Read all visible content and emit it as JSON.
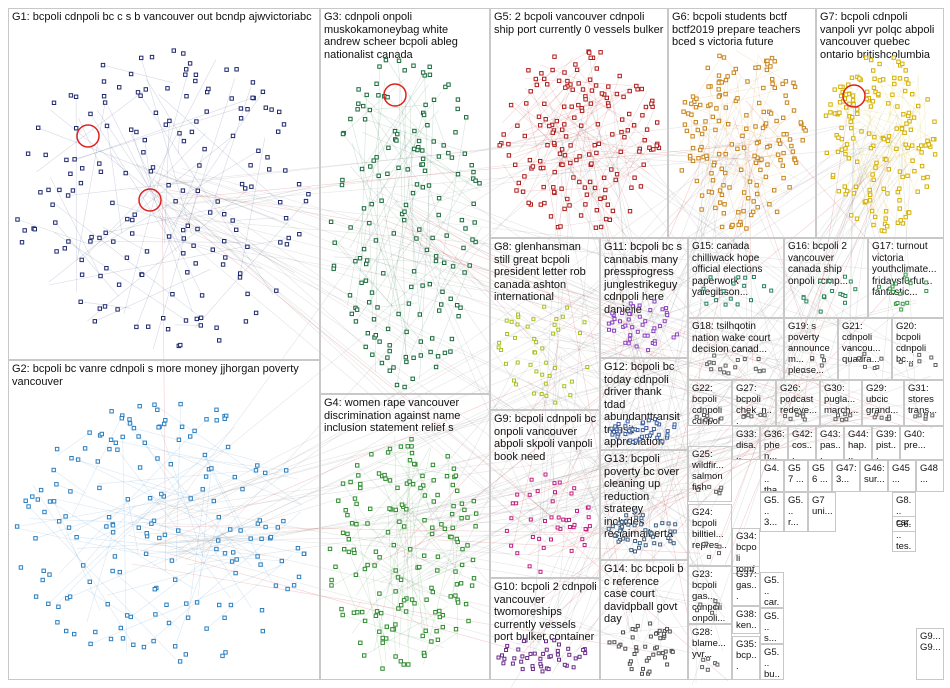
{
  "groups": [
    {
      "id": "G1",
      "label": "G1: bcpoli cdnpoli bc c s b vancouver out bcndp ajwvictoriabc",
      "color": "#1f2a6e"
    },
    {
      "id": "G2",
      "label": "G2: bcpoli bc vanre cdnpoli s more money jjhorgan poverty vancouver",
      "color": "#2a7fc0"
    },
    {
      "id": "G3",
      "label": "G3: cdnpoli onpoli muskokamoneybag white andrew scheer bcpoli ableg nationalist canada",
      "color": "#1a6b3c"
    },
    {
      "id": "G4",
      "label": "G4: women rape vancouver discrimination against name inclusion statement relief s",
      "color": "#2e8b2e"
    },
    {
      "id": "G5",
      "label": "G5: 2 bcpoli vancouver cdnpoli ship port currently 0 vessels bulker",
      "color": "#b01c1c"
    },
    {
      "id": "G6",
      "label": "G6: bcpoli students bctf bctf2019 prepare teachers bced s victoria future",
      "color": "#c8841a"
    },
    {
      "id": "G7",
      "label": "G7: bcpoli cdnpoli vanpoli yvr polqc abpoli vancouver quebec ontario britishcolumbia",
      "color": "#d4b000"
    },
    {
      "id": "G8",
      "label": "G8: glenhansman still great bcpoli president letter rob canada ashton international",
      "color": "#a8c020"
    },
    {
      "id": "G9",
      "label": "G9: bcpoli cdnpoli bc onpoli vancouver abpoli skpoli vanpoli book need",
      "color": "#c02080"
    },
    {
      "id": "G10",
      "label": "G10: bcpoli 2 cdnpoli vancouver twomoreships currently vessels port bulker container",
      "color": "#6a2a8a"
    },
    {
      "id": "G11",
      "label": "G11: bcpoli bc s cannabis many pressprogress junglestrikeguy cdnpoli here danielle",
      "color": "#8a40c0"
    },
    {
      "id": "G12",
      "label": "G12: bcpoli bc today cdnpoli driver thank tdad abundanttransit transit appreciation",
      "color": "#4060a0"
    },
    {
      "id": "G13",
      "label": "G13: bcpoli poverty bc over cleaning up reduction strategy includes reclaimalberta",
      "color": "#406080"
    },
    {
      "id": "G14",
      "label": "G14: bc bcpoli b c reference case court davidpball govt day",
      "color": "#505050"
    },
    {
      "id": "G15",
      "label": "G15: canada chilliwack hope official elections paperwork yalegibson...",
      "color": "#208060"
    },
    {
      "id": "G16",
      "label": "G16: bcpoli 2 vancouver canada ship onpoli rcmp...",
      "color": "#2a8a5a"
    },
    {
      "id": "G17",
      "label": "G17: turnout victoria youthclimate... fridaysforfut... fantastic...",
      "color": "#3a9a4a"
    },
    {
      "id": "G18",
      "label": "G18: tsilhqotin nation wake court decision canad...",
      "color": "#606060"
    },
    {
      "id": "G19",
      "label": "G19: s poverty announcem... please...",
      "color": "#606060"
    },
    {
      "id": "G20",
      "label": "G20: bcpoli cdnpoli bc...",
      "color": "#606060"
    },
    {
      "id": "G21",
      "label": "G21: cdnpoli vancou... quadra...",
      "color": "#606060"
    },
    {
      "id": "G22",
      "label": "G22: bcpoli cdnpoli cdnpol",
      "color": "#606060"
    },
    {
      "id": "G23",
      "label": "G23: bcpoli gas... cdnpoli onpoli...",
      "color": "#606060"
    },
    {
      "id": "G24",
      "label": "G24: bcpoli billtiel... repres...",
      "color": "#606060"
    },
    {
      "id": "G25",
      "label": "G25: wildfir... salmon fish",
      "color": "#606060"
    },
    {
      "id": "G26",
      "label": "G26: podcast redeye...",
      "color": "#606060"
    },
    {
      "id": "G27",
      "label": "G27: bcpoli chek_n...",
      "color": "#606060"
    },
    {
      "id": "G28",
      "label": "G28: blame... yvr...",
      "color": "#606060"
    },
    {
      "id": "G29",
      "label": "G29: ubcic grand...",
      "color": "#606060"
    },
    {
      "id": "G30",
      "label": "G30: pugla... march...",
      "color": "#606060"
    },
    {
      "id": "G31",
      "label": "G31: stores trans...",
      "color": "#606060"
    }
  ],
  "mini_groups": [
    {
      "id": "G33",
      "label": "G33: disa... diffe..."
    },
    {
      "id": "G34",
      "label": "G34: bcpoli tomf..."
    },
    {
      "id": "G35",
      "label": "G35: bcp..."
    },
    {
      "id": "G36",
      "label": "G36: phen..."
    },
    {
      "id": "G37",
      "label": "G37: gas..."
    },
    {
      "id": "G38",
      "label": "G38: ken..."
    },
    {
      "id": "G39",
      "label": "G39: pist..."
    },
    {
      "id": "G40",
      "label": "G40: pre..."
    },
    {
      "id": "G42",
      "label": "G42: cos..."
    },
    {
      "id": "G43",
      "label": "G43: pas..."
    },
    {
      "id": "G44",
      "label": "G44: hap..."
    },
    {
      "id": "G4_",
      "label": "G4... tha..."
    },
    {
      "id": "G57",
      "label": "G57 ..."
    },
    {
      "id": "G56",
      "label": "G56 ..."
    },
    {
      "id": "G47",
      "label": "G47: 3..."
    },
    {
      "id": "G46",
      "label": "G46: sur..."
    },
    {
      "id": "G45",
      "label": "G45 ..."
    },
    {
      "id": "G48",
      "label": "G48 ..."
    },
    {
      "id": "G5_a",
      "label": "G5... 3..."
    },
    {
      "id": "G5_b",
      "label": "G5... r..."
    },
    {
      "id": "G5_c",
      "label": "G5... car..."
    },
    {
      "id": "G5_d",
      "label": "G5... s..."
    },
    {
      "id": "G5_e",
      "label": "G5... bu..."
    },
    {
      "id": "G7_",
      "label": "G7 uni..."
    },
    {
      "id": "G8_",
      "label": "G8... car..."
    },
    {
      "id": "G6_",
      "label": "G6... tes..."
    },
    {
      "id": "G9_",
      "label": "G9... G9..."
    }
  ]
}
